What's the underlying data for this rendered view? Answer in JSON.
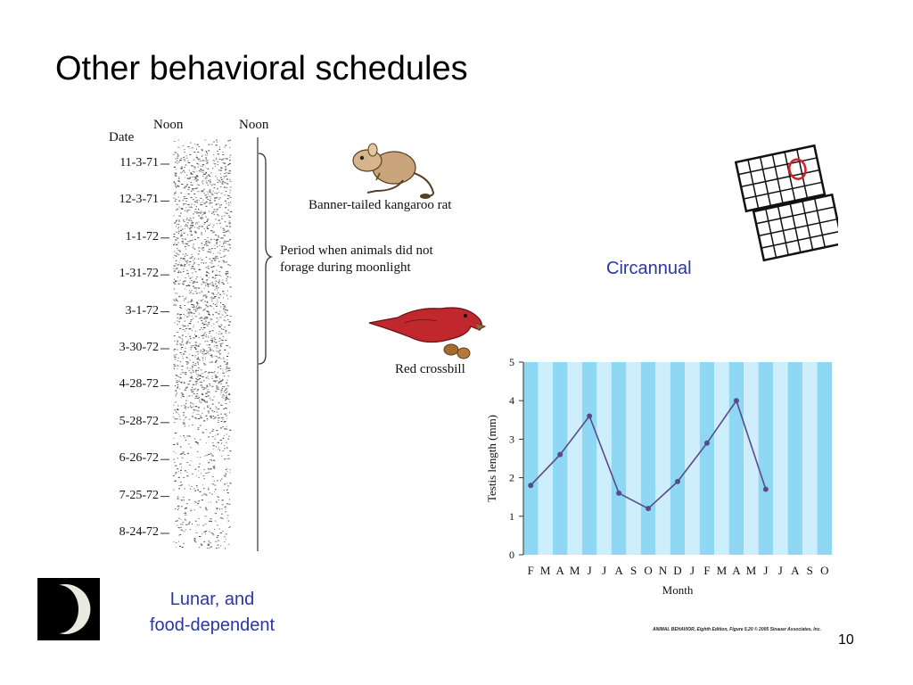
{
  "slide": {
    "title": "Other behavioral schedules",
    "page_number": "10",
    "lunar_label_line1": "Lunar, and",
    "lunar_label_line2": "food-dependent",
    "circannual_label": "Circannual",
    "credit": "ANIMAL BEHAVIOR, Eighth Edition, Figure 5.20 © 2005 Sinauer Associates, Inc."
  },
  "actogram": {
    "date_header": "Date",
    "noon_left": "Noon",
    "noon_right": "Noon",
    "dates": [
      "11-3-71",
      "12-3-71",
      "1-1-72",
      "1-31-72",
      "3-1-72",
      "3-30-72",
      "4-28-72",
      "5-28-72",
      "6-26-72",
      "7-25-72",
      "8-24-72"
    ],
    "bracket_caption_line1": "Period when animals did not",
    "bracket_caption_line2": "forage during moonlight",
    "rat_caption": "Banner-tailed kangaroo rat",
    "bird_caption": "Red crossbill"
  },
  "colors": {
    "label_blue": "#2b35a6",
    "chart_stripe_light": "#cfeefb",
    "chart_stripe_dark": "#8fd8f4",
    "line": "#5a4a8a",
    "bird_red": "#c0282d"
  },
  "chart_data": {
    "type": "line",
    "categories": [
      "F",
      "M",
      "A",
      "M",
      "J",
      "J",
      "A",
      "S",
      "O",
      "N",
      "D",
      "J",
      "F",
      "M",
      "A",
      "M",
      "J",
      "J",
      "A",
      "S",
      "O"
    ],
    "xlabel": "Month",
    "ylabel": "Testis length (mm)",
    "ylim": [
      0,
      5
    ],
    "yticks": [
      0,
      1,
      2,
      3,
      4,
      5
    ],
    "series": [
      {
        "points": [
          {
            "category_index": 0,
            "value": 1.8
          },
          {
            "category_index": 2,
            "value": 2.6
          },
          {
            "category_index": 4,
            "value": 3.6
          },
          {
            "category_index": 6,
            "value": 1.6
          },
          {
            "category_index": 8,
            "value": 1.2
          },
          {
            "category_index": 10,
            "value": 1.9
          },
          {
            "category_index": 12,
            "value": 2.9
          },
          {
            "category_index": 14,
            "value": 4.0
          },
          {
            "category_index": 16,
            "value": 1.7
          }
        ]
      }
    ],
    "grid": false
  }
}
